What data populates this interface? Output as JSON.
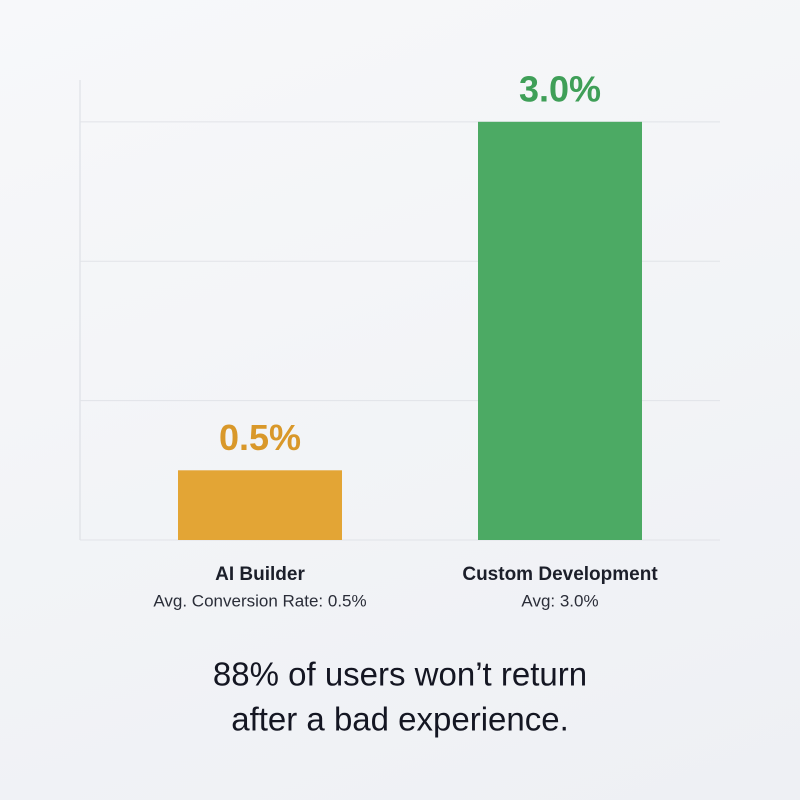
{
  "chart_data": {
    "type": "bar",
    "categories": [
      "AI Builder",
      "Custom Development"
    ],
    "category_notes": [
      "Avg. Conversion Rate: 0.5%",
      "Avg: 3.0%"
    ],
    "values": [
      0.5,
      3.0
    ],
    "value_labels": [
      "0.5%",
      "3.0%"
    ],
    "colors": [
      "#e3a535",
      "#4caa64"
    ],
    "label_colors": [
      "#d9982a",
      "#3f9f58"
    ],
    "ylim": [
      0,
      3.3
    ],
    "yticks": [
      0,
      1,
      2,
      3
    ],
    "grid": true,
    "caption": [
      "88% of users won’t return",
      "after a bad experience."
    ]
  }
}
